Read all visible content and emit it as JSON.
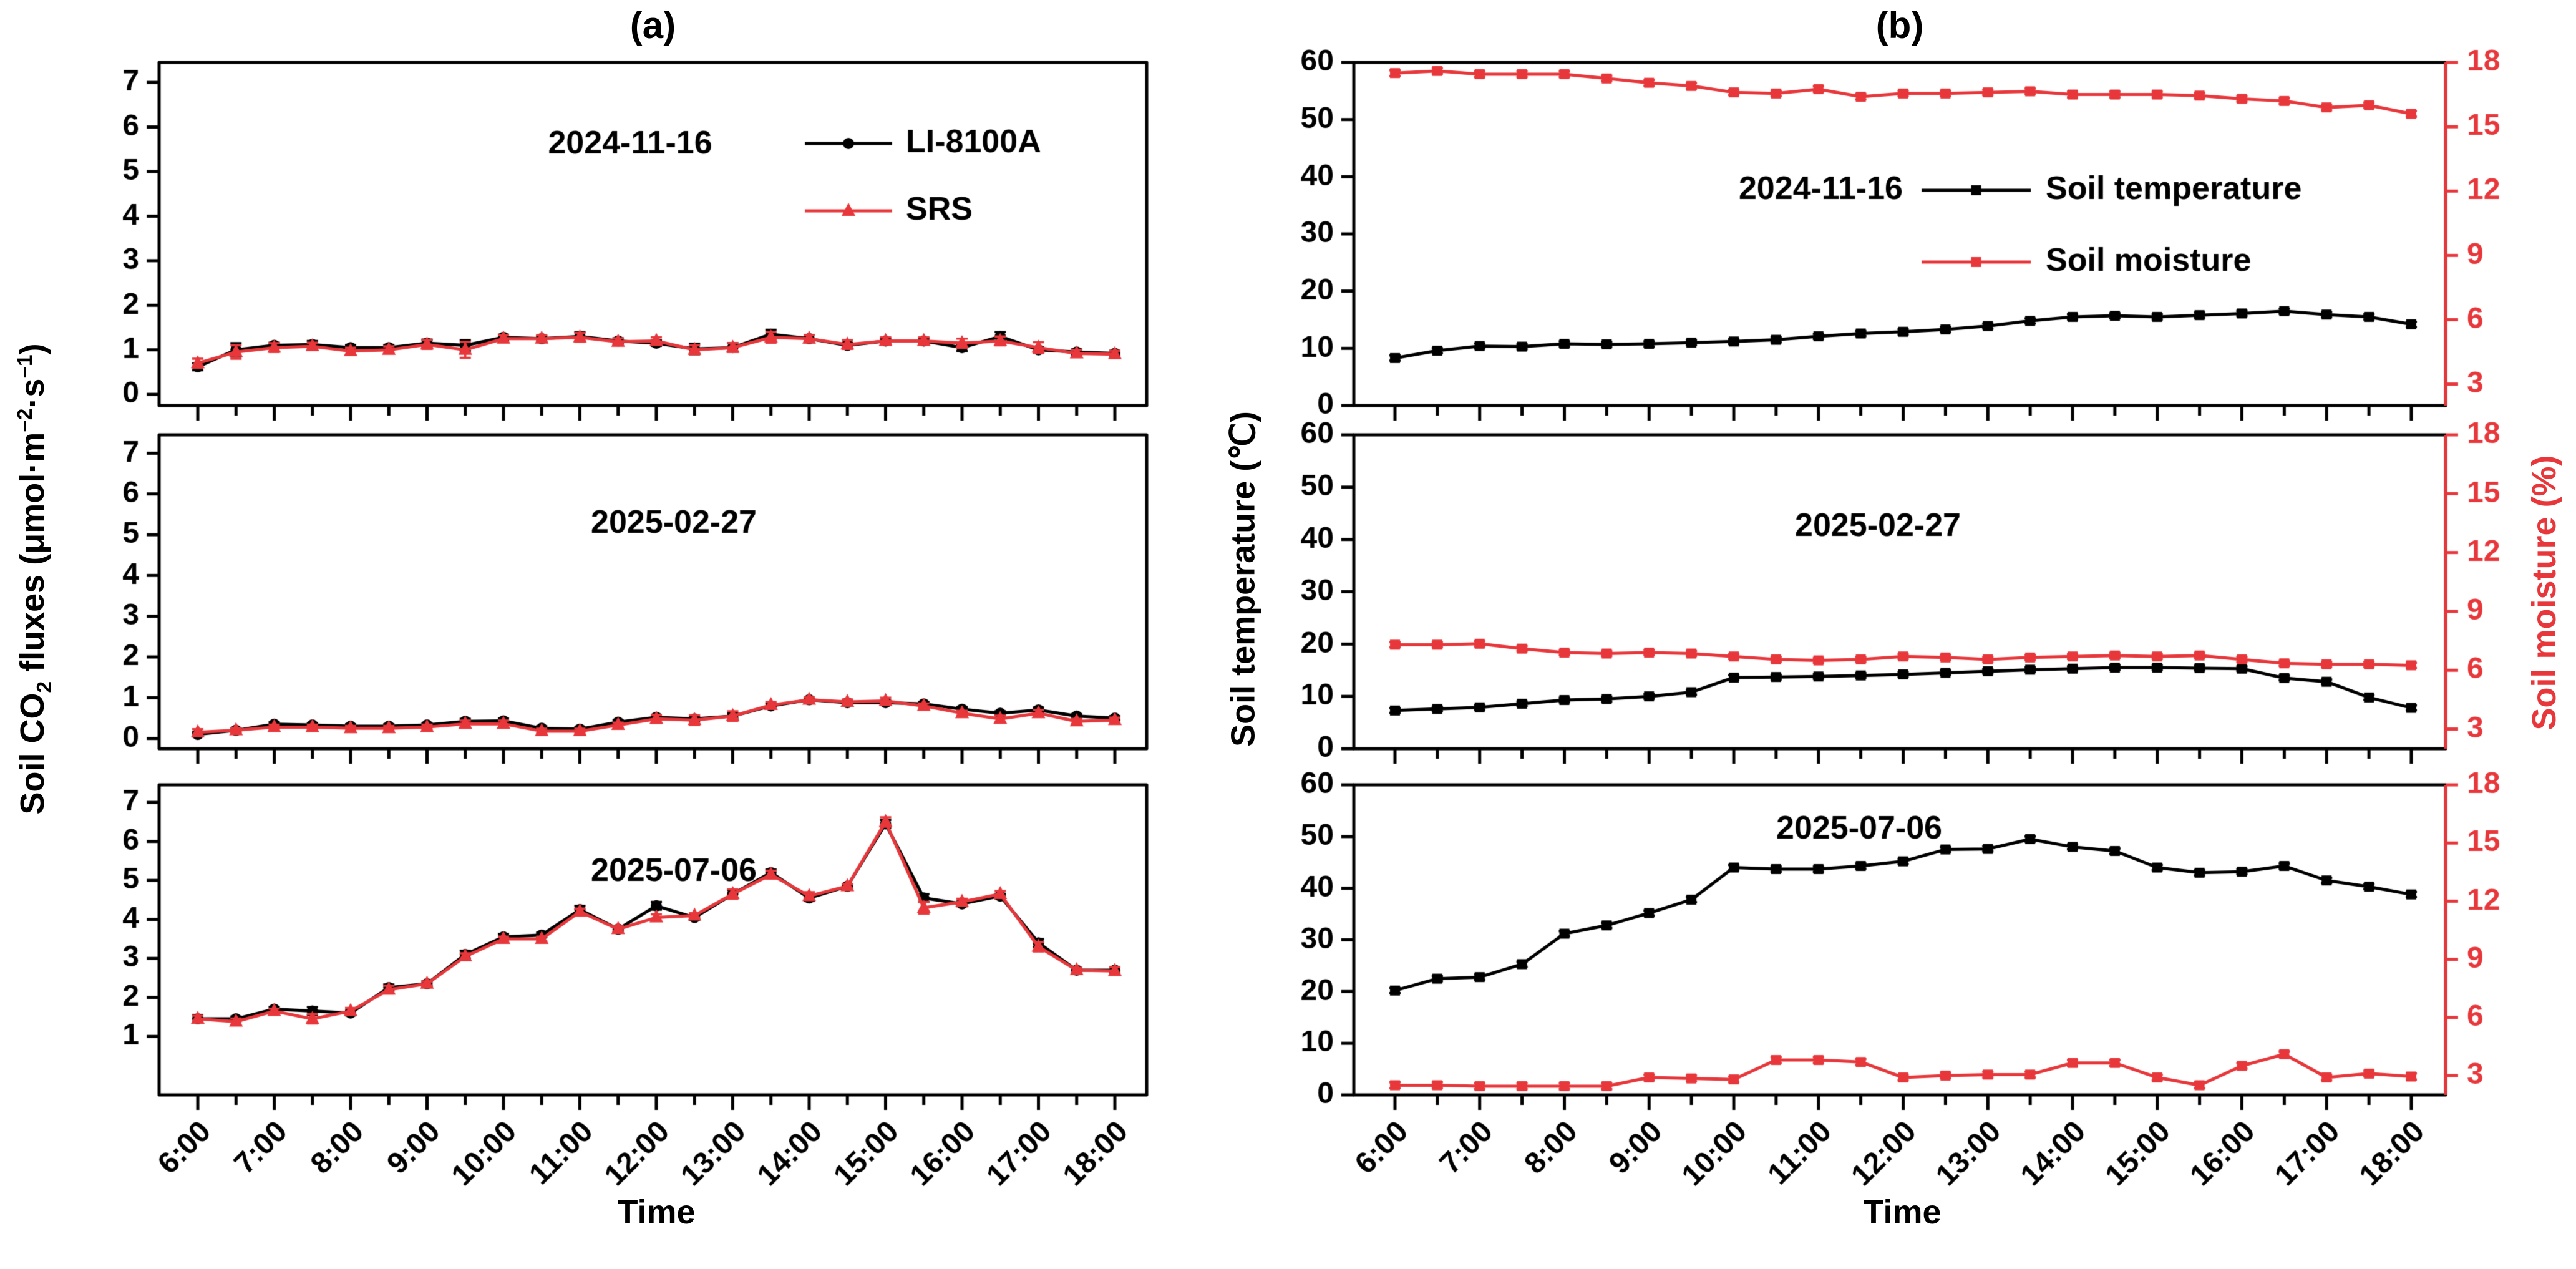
{
  "figure": {
    "panel_label_a": "(a)",
    "panel_label_b": "(b)",
    "xlabel_a": "Time",
    "xlabel_b": "Time",
    "ylabel_b_left": "Soil temperature (℃)",
    "ylabel_b_right": "Soil moisture (%)",
    "ylabel_a_parts": [
      {
        "text": "Soil CO"
      },
      {
        "text": "2",
        "style": "sub"
      },
      {
        "text": " fluxes (μmol·m",
        "style": ""
      },
      {
        "text": "−2",
        "style": "sup"
      },
      {
        "text": "·s"
      },
      {
        "text": "−1",
        "style": "sup"
      },
      {
        "text": ")"
      }
    ],
    "colors": {
      "black": "#000000",
      "red": "#e8373b"
    },
    "x_tick_labels": [
      "6:00",
      "7:00",
      "8:00",
      "9:00",
      "10:00",
      "11:00",
      "12:00",
      "13:00",
      "14:00",
      "15:00",
      "16:00",
      "17:00",
      "18:00"
    ]
  },
  "chart_data": [
    {
      "id": "a1",
      "type": "line",
      "column": "a",
      "row": 0,
      "date": "2024-11-16",
      "legend": true,
      "ylim": [
        -0.25,
        7.45
      ],
      "yticks": [
        0,
        1,
        2,
        3,
        4,
        5,
        6,
        7
      ],
      "series": [
        {
          "name": "LI-8100A",
          "color": "#000000",
          "marker": "circle",
          "values": [
            0.62,
            1.0,
            1.1,
            1.12,
            1.05,
            1.05,
            1.15,
            1.1,
            1.28,
            1.25,
            1.3,
            1.2,
            1.15,
            1.02,
            1.05,
            1.35,
            1.25,
            1.1,
            1.2,
            1.2,
            1.05,
            1.3,
            1.0,
            0.95,
            0.92
          ],
          "err": [
            0.08,
            0.15,
            0.06,
            0.08,
            0.06,
            0.06,
            0.08,
            0.12,
            0.06,
            0.06,
            0.1,
            0.06,
            0.06,
            0.12,
            0.1,
            0.1,
            0.08,
            0.06,
            0.06,
            0.06,
            0.08,
            0.1,
            0.06,
            0.06,
            0.06
          ]
        },
        {
          "name": "SRS",
          "color": "#e8373b",
          "marker": "triangle",
          "values": [
            0.7,
            0.95,
            1.05,
            1.08,
            0.97,
            1.0,
            1.12,
            1.0,
            1.25,
            1.25,
            1.28,
            1.18,
            1.2,
            1.0,
            1.05,
            1.28,
            1.25,
            1.12,
            1.2,
            1.2,
            1.15,
            1.2,
            1.05,
            0.92,
            0.9
          ],
          "err": [
            0.1,
            0.15,
            0.1,
            0.08,
            0.08,
            0.08,
            0.1,
            0.18,
            0.08,
            0.08,
            0.1,
            0.08,
            0.08,
            0.1,
            0.1,
            0.12,
            0.08,
            0.1,
            0.08,
            0.08,
            0.1,
            0.1,
            0.12,
            0.08,
            0.08
          ]
        }
      ]
    },
    {
      "id": "a2",
      "type": "line",
      "column": "a",
      "row": 1,
      "date": "2025-02-27",
      "legend": false,
      "ylim": [
        -0.25,
        7.45
      ],
      "yticks": [
        0,
        1,
        2,
        3,
        4,
        5,
        6,
        7
      ],
      "series": [
        {
          "name": "LI-8100A",
          "color": "#000000",
          "marker": "circle",
          "values": [
            0.1,
            0.2,
            0.35,
            0.33,
            0.3,
            0.3,
            0.33,
            0.42,
            0.43,
            0.25,
            0.23,
            0.4,
            0.52,
            0.48,
            0.55,
            0.8,
            0.95,
            0.88,
            0.88,
            0.85,
            0.72,
            0.62,
            0.7,
            0.55,
            0.5
          ],
          "err": [
            0.05,
            0.05,
            0.05,
            0.05,
            0.05,
            0.05,
            0.05,
            0.06,
            0.06,
            0.05,
            0.05,
            0.05,
            0.06,
            0.05,
            0.06,
            0.06,
            0.06,
            0.05,
            0.05,
            0.05,
            0.05,
            0.05,
            0.06,
            0.05,
            0.05
          ]
        },
        {
          "name": "SRS",
          "color": "#e8373b",
          "marker": "triangle",
          "values": [
            0.15,
            0.2,
            0.28,
            0.28,
            0.25,
            0.25,
            0.28,
            0.36,
            0.36,
            0.18,
            0.18,
            0.33,
            0.48,
            0.45,
            0.55,
            0.82,
            0.95,
            0.9,
            0.92,
            0.8,
            0.62,
            0.48,
            0.62,
            0.42,
            0.45
          ],
          "err": [
            0.08,
            0.06,
            0.06,
            0.06,
            0.06,
            0.06,
            0.06,
            0.08,
            0.08,
            0.06,
            0.06,
            0.06,
            0.1,
            0.12,
            0.12,
            0.08,
            0.06,
            0.06,
            0.08,
            0.06,
            0.06,
            0.08,
            0.08,
            0.06,
            0.06
          ]
        }
      ]
    },
    {
      "id": "a3",
      "type": "line",
      "column": "a",
      "row": 2,
      "date": "2025-07-06",
      "legend": false,
      "ylim": [
        -0.5,
        7.45
      ],
      "yticks": [
        1,
        2,
        3,
        4,
        5,
        6,
        7
      ],
      "series": [
        {
          "name": "LI-8100A",
          "color": "#000000",
          "marker": "circle",
          "values": [
            1.45,
            1.45,
            1.7,
            1.65,
            1.6,
            2.25,
            2.35,
            3.1,
            3.55,
            3.6,
            4.25,
            3.75,
            4.35,
            4.05,
            4.65,
            5.2,
            4.55,
            4.85,
            6.45,
            4.55,
            4.4,
            4.6,
            3.4,
            2.7,
            2.7
          ],
          "err": [
            0.1,
            0.06,
            0.06,
            0.1,
            0.06,
            0.08,
            0.06,
            0.1,
            0.08,
            0.06,
            0.1,
            0.06,
            0.1,
            0.06,
            0.1,
            0.08,
            0.08,
            0.06,
            0.1,
            0.1,
            0.06,
            0.06,
            0.1,
            0.06,
            0.08
          ]
        },
        {
          "name": "SRS",
          "color": "#e8373b",
          "marker": "triangle",
          "values": [
            1.45,
            1.38,
            1.65,
            1.45,
            1.65,
            2.2,
            2.35,
            3.05,
            3.5,
            3.5,
            4.2,
            3.75,
            4.05,
            4.1,
            4.65,
            5.15,
            4.6,
            4.85,
            6.5,
            4.3,
            4.45,
            4.65,
            3.3,
            2.7,
            2.68
          ],
          "err": [
            0.08,
            0.08,
            0.06,
            0.12,
            0.08,
            0.1,
            0.06,
            0.08,
            0.06,
            0.06,
            0.08,
            0.08,
            0.08,
            0.06,
            0.12,
            0.1,
            0.1,
            0.06,
            0.12,
            0.15,
            0.08,
            0.08,
            0.12,
            0.06,
            0.1
          ]
        }
      ]
    },
    {
      "id": "b1",
      "type": "line",
      "column": "b",
      "row": 0,
      "date": "2024-11-16",
      "legend": true,
      "ylim": [
        0,
        60
      ],
      "yticks": [
        0,
        10,
        20,
        30,
        40,
        50,
        60
      ],
      "ylim_right": [
        2,
        18
      ],
      "yticks_right": [
        3,
        6,
        9,
        12,
        15,
        18
      ],
      "series": [
        {
          "name": "Soil temperature",
          "axis": "left",
          "color": "#000000",
          "marker": "square",
          "err": 0.45,
          "values": [
            8.3,
            9.6,
            10.4,
            10.3,
            10.8,
            10.7,
            10.8,
            11.0,
            11.2,
            11.5,
            12.1,
            12.6,
            12.9,
            13.3,
            13.9,
            14.8,
            15.5,
            15.7,
            15.5,
            15.8,
            16.1,
            16.5,
            15.9,
            15.5,
            14.2
          ]
        },
        {
          "name": "Soil moisture",
          "axis": "right",
          "color": "#e8373b",
          "marker": "square",
          "err": 0.13,
          "values": [
            17.5,
            17.6,
            17.45,
            17.45,
            17.45,
            17.25,
            17.05,
            16.9,
            16.6,
            16.55,
            16.75,
            16.4,
            16.55,
            16.55,
            16.6,
            16.65,
            16.5,
            16.5,
            16.5,
            16.45,
            16.3,
            16.2,
            15.9,
            16.0,
            15.6
          ]
        }
      ]
    },
    {
      "id": "b2",
      "type": "line",
      "column": "b",
      "row": 1,
      "date": "2025-02-27",
      "legend": false,
      "ylim": [
        0,
        60
      ],
      "yticks": [
        0,
        10,
        20,
        30,
        40,
        50,
        60
      ],
      "ylim_right": [
        2,
        18
      ],
      "yticks_right": [
        3,
        6,
        9,
        12,
        15,
        18
      ],
      "series": [
        {
          "name": "Soil temperature",
          "axis": "left",
          "color": "#000000",
          "marker": "square",
          "err": 0.45,
          "values": [
            7.3,
            7.6,
            7.9,
            8.6,
            9.3,
            9.5,
            10.0,
            10.8,
            13.6,
            13.7,
            13.8,
            14.0,
            14.2,
            14.5,
            14.8,
            15.1,
            15.3,
            15.5,
            15.5,
            15.4,
            15.3,
            13.5,
            12.8,
            9.8,
            7.8
          ]
        },
        {
          "name": "Soil moisture",
          "axis": "right",
          "color": "#e8373b",
          "marker": "square",
          "err": 0.13,
          "values": [
            7.3,
            7.3,
            7.35,
            7.1,
            6.9,
            6.85,
            6.9,
            6.85,
            6.7,
            6.55,
            6.5,
            6.55,
            6.7,
            6.65,
            6.55,
            6.65,
            6.7,
            6.75,
            6.7,
            6.75,
            6.55,
            6.35,
            6.3,
            6.3,
            6.25
          ]
        }
      ]
    },
    {
      "id": "b3",
      "type": "line",
      "column": "b",
      "row": 2,
      "date": "2025-07-06",
      "legend": false,
      "ylim": [
        0,
        60
      ],
      "yticks": [
        0,
        10,
        20,
        30,
        40,
        50,
        60
      ],
      "ylim_right": [
        2,
        18
      ],
      "yticks_right": [
        3,
        6,
        9,
        12,
        15,
        18
      ],
      "series": [
        {
          "name": "Soil temperature",
          "axis": "left",
          "color": "#000000",
          "marker": "square",
          "err": 0.5,
          "values": [
            20.2,
            22.5,
            22.8,
            25.3,
            31.2,
            32.8,
            35.2,
            37.8,
            44.0,
            43.7,
            43.7,
            44.3,
            45.2,
            47.5,
            47.6,
            49.5,
            48.0,
            47.2,
            44.0,
            43.0,
            43.2,
            44.3,
            41.5,
            40.3,
            38.8
          ]
        },
        {
          "name": "Soil moisture",
          "axis": "right",
          "color": "#e8373b",
          "marker": "square",
          "err": 0.15,
          "values": [
            2.5,
            2.5,
            2.45,
            2.45,
            2.45,
            2.45,
            2.9,
            2.85,
            2.8,
            3.8,
            3.8,
            3.7,
            2.9,
            3.0,
            3.05,
            3.05,
            3.65,
            3.65,
            2.9,
            2.5,
            3.5,
            4.1,
            2.9,
            3.1,
            2.95
          ]
        }
      ]
    }
  ]
}
